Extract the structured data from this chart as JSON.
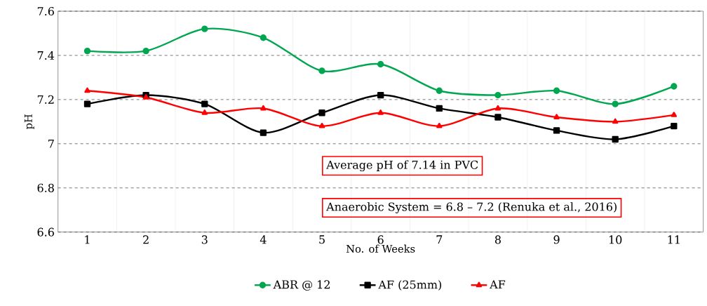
{
  "chart_data": {
    "type": "line",
    "xlabel": "No. of Weeks",
    "ylabel": "pH",
    "categories": [
      "1",
      "2",
      "3",
      "4",
      "5",
      "6",
      "7",
      "8",
      "9",
      "10",
      "11"
    ],
    "series": [
      {
        "name": "ABR @ 12",
        "color": "#00a650",
        "marker": "circle",
        "values": [
          7.42,
          7.42,
          7.52,
          7.48,
          7.33,
          7.36,
          7.24,
          7.22,
          7.24,
          7.18,
          7.26
        ]
      },
      {
        "name": "AF (25mm)",
        "color": "#000000",
        "marker": "square",
        "values": [
          7.18,
          7.22,
          7.18,
          7.05,
          7.14,
          7.22,
          7.16,
          7.12,
          7.06,
          7.02,
          7.08
        ]
      },
      {
        "name": "AF",
        "color": "#ff0000",
        "marker": "triangle",
        "values": [
          7.24,
          7.21,
          7.14,
          7.16,
          7.08,
          7.14,
          7.08,
          7.16,
          7.12,
          7.1,
          7.13
        ]
      }
    ],
    "ylim": [
      6.6,
      7.6
    ],
    "yticks": [
      {
        "value": 6.6,
        "label": "6.6"
      },
      {
        "value": 6.8,
        "label": "6.8"
      },
      7,
      {
        "value": 7.2,
        "label": "7.2"
      },
      {
        "value": 7.4,
        "label": "7.4"
      },
      {
        "value": 7.6,
        "label": "7.6"
      }
    ],
    "grid": "y",
    "legend": "bottom",
    "annotations": [
      "Average pH of 7.14 in PVC",
      "Anaerobic System = 6.8 – 7.2 (Renuka et al., 2016)"
    ]
  }
}
